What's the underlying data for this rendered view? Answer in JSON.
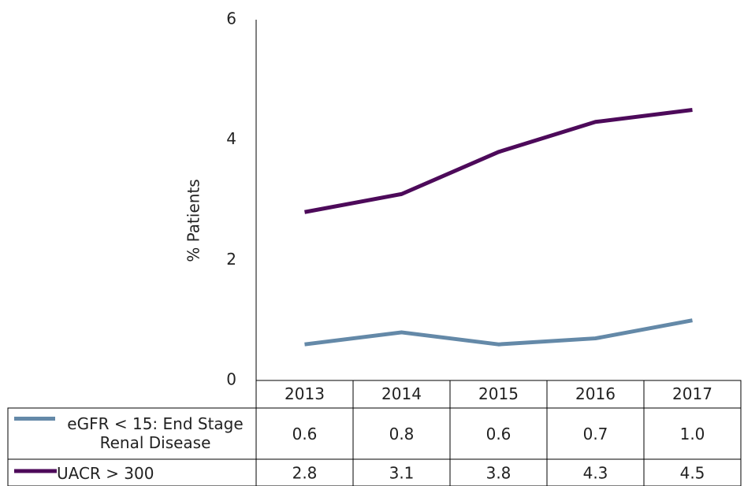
{
  "chart_data": {
    "type": "line",
    "y_label": "% Patients",
    "categories": [
      "2013",
      "2014",
      "2015",
      "2016",
      "2017"
    ],
    "series": [
      {
        "name": "eGFR < 15: End Stage Renal Disease",
        "color": "#6489a8",
        "values": [
          0.6,
          0.8,
          0.6,
          0.7,
          1.0
        ],
        "value_labels": [
          "0.6",
          "0.8",
          "0.6",
          "0.7",
          "1.0"
        ]
      },
      {
        "name": "UACR > 300",
        "color": "#4d0a5a",
        "values": [
          2.8,
          3.1,
          3.8,
          4.3,
          4.5
        ],
        "value_labels": [
          "2.8",
          "3.1",
          "3.8",
          "4.3",
          "4.5"
        ]
      }
    ],
    "ylim": [
      0,
      6
    ],
    "yticks": [
      0,
      2,
      4,
      6
    ],
    "grid": false
  }
}
